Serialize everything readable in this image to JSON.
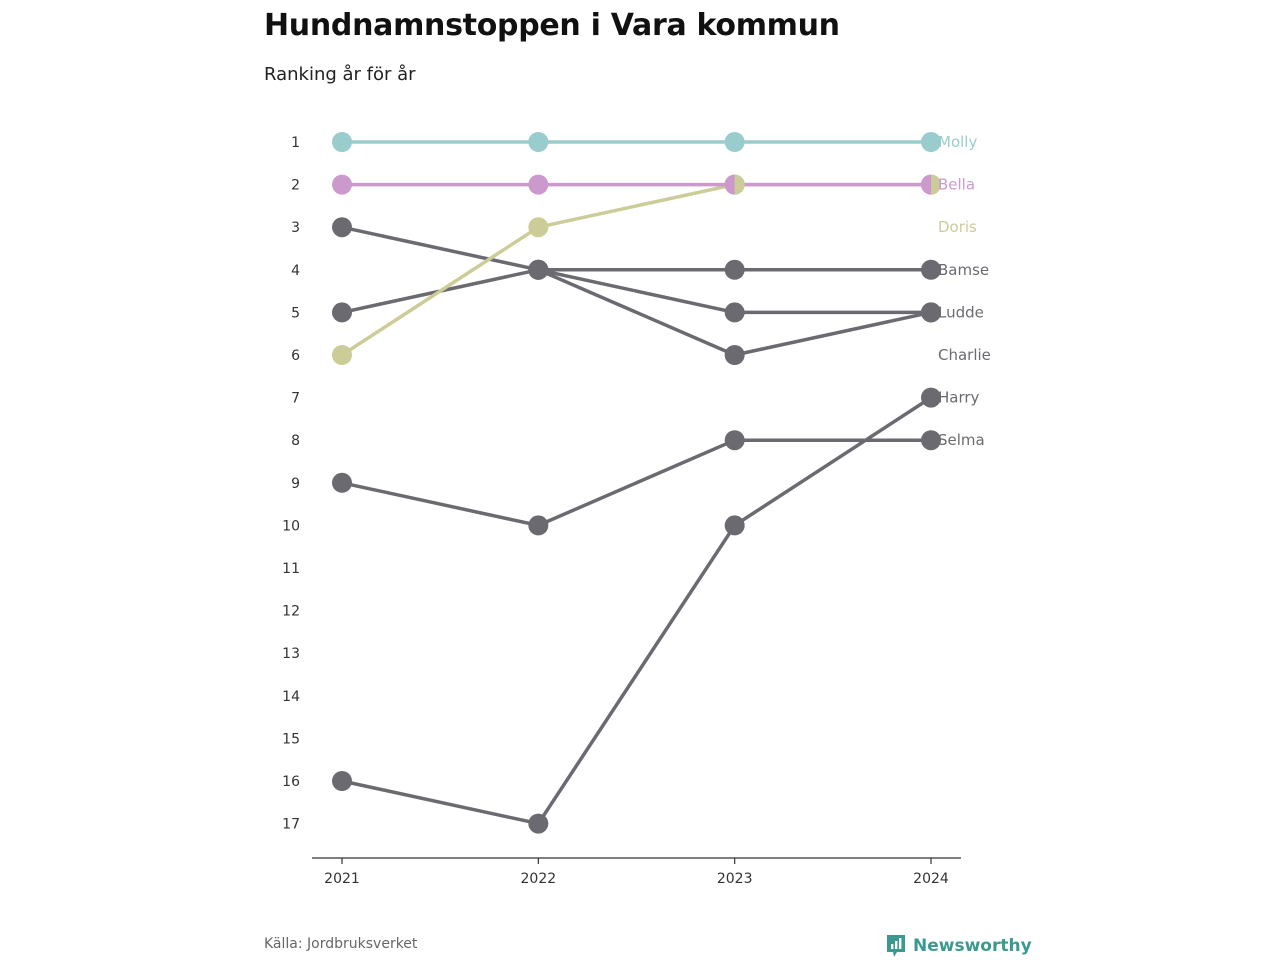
{
  "header": {
    "title": "Hundnamnstoppen i Vara kommun",
    "subtitle": "Ranking år för år"
  },
  "footer": {
    "source": "Källa: Jordbruksverket",
    "brand": "Newsworthy",
    "brand_icon": "newsworthy-logo-icon",
    "brand_color": "#3a9a90"
  },
  "chart_data": {
    "type": "line",
    "x": [
      "2021",
      "2022",
      "2023",
      "2024"
    ],
    "ylim": [
      1,
      17
    ],
    "y_ticks": [
      "1",
      "2",
      "3",
      "4",
      "5",
      "6",
      "7",
      "8",
      "9",
      "10",
      "11",
      "12",
      "13",
      "14",
      "15",
      "16",
      "17"
    ],
    "y_reversed": true,
    "grid": false,
    "series": [
      {
        "name": "Bamse",
        "values": [
          5,
          4,
          4,
          4
        ],
        "color": "#6b6a70"
      },
      {
        "name": "Ludde",
        "values": [
          3,
          4,
          5,
          5
        ],
        "color": "#6b6a70"
      },
      {
        "name": "Charlie",
        "values": [
          null,
          4,
          6,
          5
        ],
        "color": "#6b6a70"
      },
      {
        "name": "Selma",
        "values": [
          9,
          10,
          8,
          8
        ],
        "color": "#6b6a70"
      },
      {
        "name": "Harry",
        "values": [
          16,
          17,
          10,
          7
        ],
        "color": "#6b6a70"
      },
      {
        "name": "Doris",
        "values": [
          6,
          3,
          2,
          2
        ],
        "color": "#cccc99"
      },
      {
        "name": "Bella",
        "values": [
          2,
          2,
          2,
          2
        ],
        "color": "#cc99cc"
      },
      {
        "name": "Molly",
        "values": [
          1,
          1,
          1,
          1
        ],
        "color": "#99cccc"
      }
    ]
  }
}
